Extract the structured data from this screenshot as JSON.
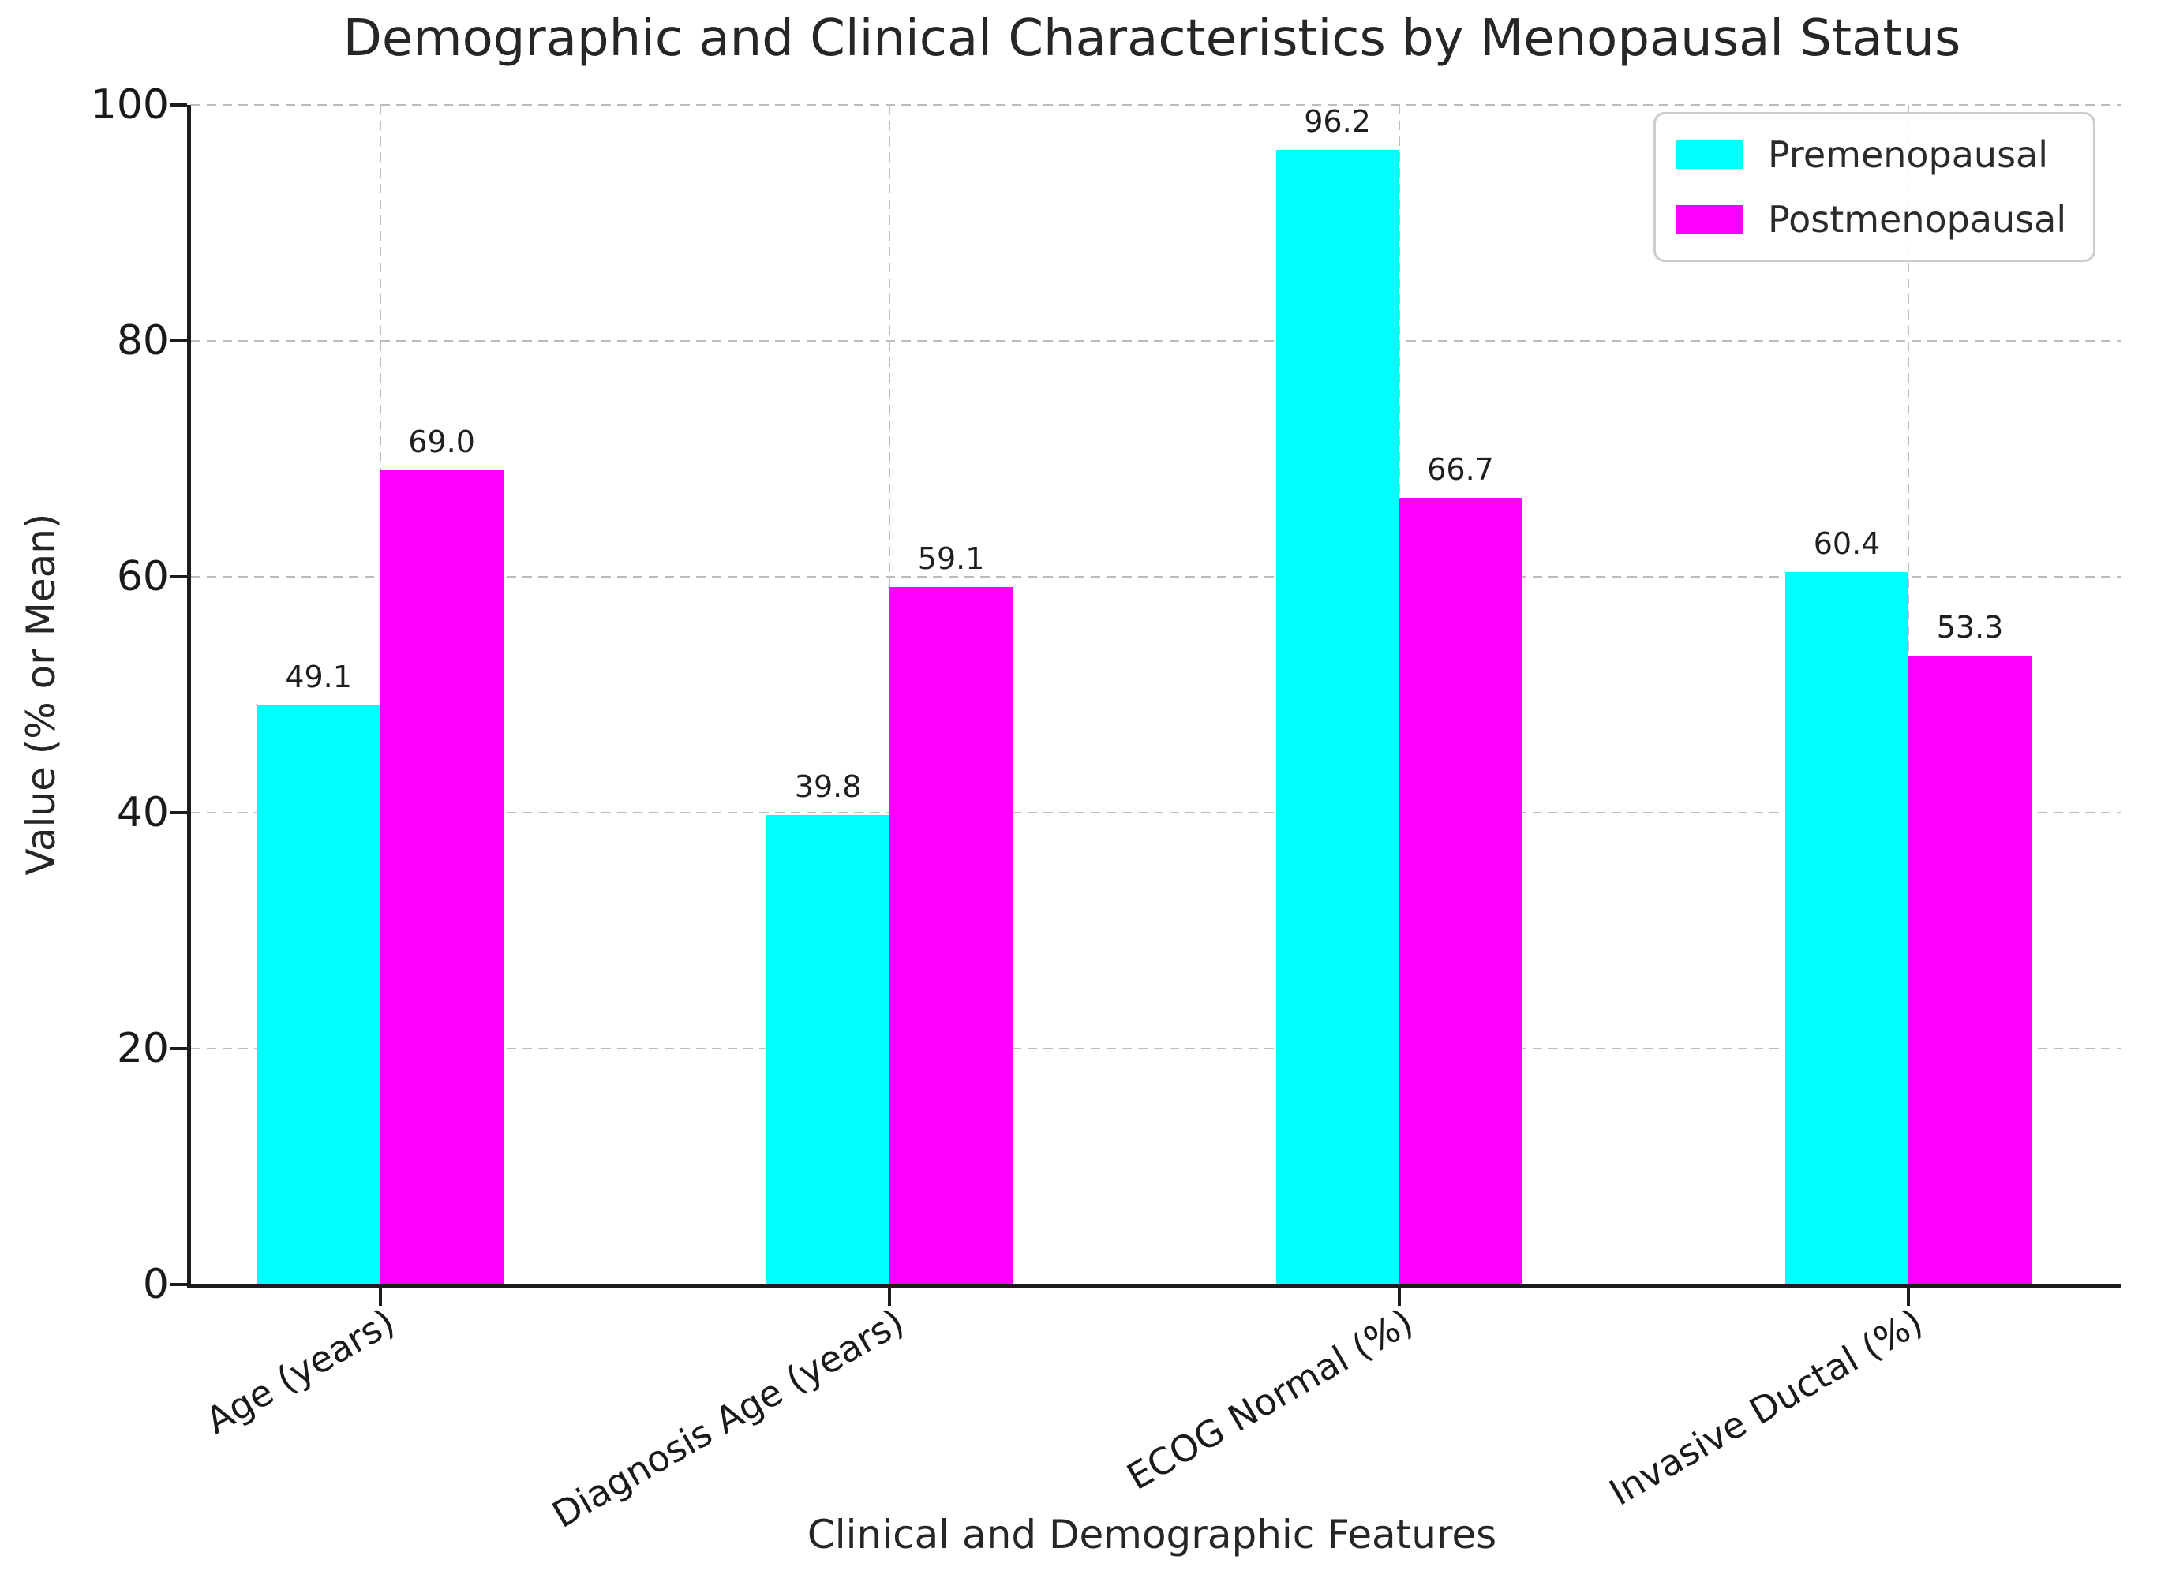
{
  "chart_data": {
    "type": "bar",
    "title": "Demographic and Clinical Characteristics by Menopausal Status",
    "xlabel": "Clinical and Demographic Features",
    "ylabel": "Value (% or Mean)",
    "categories": [
      "Age (years)",
      "Diagnosis Age (years)",
      "ECOG Normal (%)",
      "Invasive Ductal (%)"
    ],
    "series": [
      {
        "name": "Premenopausal",
        "color": "#00ffff",
        "values": [
          49.1,
          39.8,
          96.2,
          60.4
        ],
        "labels": [
          "49.1",
          "39.8",
          "96.2",
          "60.4"
        ]
      },
      {
        "name": "Postmenopausal",
        "color": "#ff00ff",
        "values": [
          69.0,
          59.1,
          66.7,
          53.3
        ],
        "labels": [
          "69.0",
          "59.1",
          "66.7",
          "53.3"
        ]
      }
    ],
    "ylim": [
      0,
      100
    ],
    "yticks": [
      0,
      20,
      40,
      60,
      80,
      100
    ],
    "grid": true,
    "grid_color": "#bcbcbc",
    "axis_color": "#1c1c1c",
    "text_color": "#262626",
    "legend_position": "upper right",
    "xtick_rotation_deg": 30
  }
}
